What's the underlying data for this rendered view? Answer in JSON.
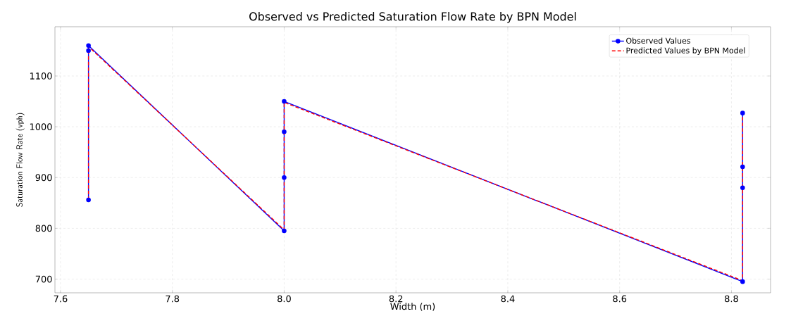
{
  "chart_data": {
    "type": "line",
    "title": "Observed vs Predicted Saturation Flow Rate by BPN Model",
    "xlabel": "Width (m)",
    "ylabel": "Saturation Flow Rate (vph)",
    "x": [
      7.65,
      7.65,
      7.65,
      8.0,
      8.0,
      8.0,
      8.0,
      8.82,
      8.82,
      8.82,
      8.82
    ],
    "series": [
      {
        "name": "Observed Values",
        "color": "#0000ff",
        "values": [
          856,
          1150,
          1160,
          795,
          900,
          990,
          1050,
          695,
          880,
          921,
          1027
        ],
        "marker": "circle",
        "line_style": "solid"
      },
      {
        "name": "Predicted Values by BPN Model",
        "color": "#ff0000",
        "values": [
          856,
          1150,
          1158,
          797,
          900,
          990,
          1048,
          697,
          880,
          921,
          1025
        ],
        "marker": "none",
        "line_style": "dashed"
      }
    ],
    "xlim": [
      7.59,
      8.87
    ],
    "ylim": [
      673,
      1197
    ],
    "xticks": [
      7.6,
      7.8,
      {
        "value": 8.0,
        "label": "8.0"
      },
      8.2,
      8.4,
      8.6,
      8.8
    ],
    "yticks": [
      700,
      800,
      900,
      1000,
      1100
    ],
    "grid": true,
    "legend": "top right"
  }
}
